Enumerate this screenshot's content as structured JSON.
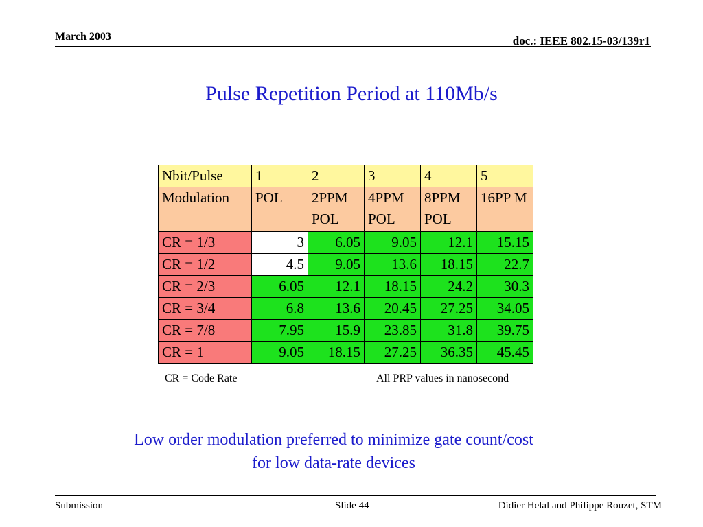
{
  "header": {
    "date": "March 2003",
    "doc_id": "doc.: IEEE 802.15-03/139r1"
  },
  "title": "Pulse Repetition Period at 110Mb/s",
  "table": {
    "nbit_row": [
      "Nbit/Pulse",
      "1",
      "2",
      "3",
      "4",
      "5"
    ],
    "mod_row": [
      "Modulation",
      "POL",
      "2PPM POL",
      "4PPM POL",
      "8PPM POL",
      "16PP M"
    ],
    "rows": [
      {
        "label": "CR = 1/3",
        "values": [
          "3",
          "6.05",
          "9.05",
          "12.1",
          "15.15"
        ]
      },
      {
        "label": "CR = 1/2",
        "values": [
          "4.5",
          "9.05",
          "13.6",
          "18.15",
          "22.7"
        ]
      },
      {
        "label": "CR = 2/3",
        "values": [
          "6.05",
          "12.1",
          "18.15",
          "24.2",
          "30.3"
        ]
      },
      {
        "label": "CR = 3/4",
        "values": [
          "6.8",
          "13.6",
          "20.45",
          "27.25",
          "34.05"
        ]
      },
      {
        "label": "CR = 7/8",
        "values": [
          "7.95",
          "15.9",
          "23.85",
          "31.8",
          "39.75"
        ]
      },
      {
        "label": "CR = 1",
        "values": [
          "9.05",
          "18.15",
          "27.25",
          "36.35",
          "45.45"
        ]
      }
    ],
    "colors": {
      "header": "#fff79e",
      "modulation": "#fccaa0",
      "row_label": "#f97a7a",
      "green": "#1de21d",
      "white": "#ffffff"
    }
  },
  "notes": {
    "left": "CR = Code Rate",
    "right": "All PRP values in nanosecond"
  },
  "conclusion": {
    "line1": "Low order modulation preferred to minimize gate count/cost",
    "line2": "for low data-rate devices"
  },
  "footer": {
    "left": "Submission",
    "slide": "Slide 44",
    "authors": "Didier Helal and Philippe Rouzet, STM"
  }
}
